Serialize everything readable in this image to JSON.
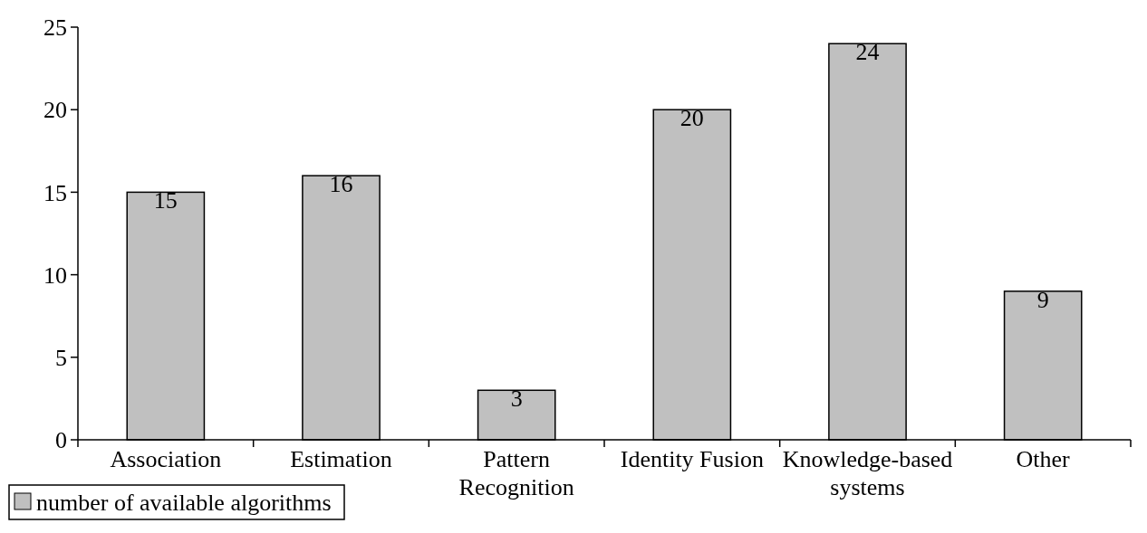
{
  "chart_data": {
    "type": "bar",
    "categories": [
      "Association",
      "Estimation",
      "Pattern Recognition",
      "Identity Fusion",
      "Knowledge-based systems",
      "Other"
    ],
    "series": [
      {
        "name": "number of available algorithms",
        "color": "#c0c0c0",
        "values": [
          15,
          16,
          3,
          20,
          24,
          9
        ]
      }
    ],
    "ylim": [
      0,
      25
    ],
    "yticks": [
      0,
      5,
      10,
      15,
      20,
      25
    ],
    "data_labels": true,
    "legend": "bottom left",
    "grid": false
  }
}
